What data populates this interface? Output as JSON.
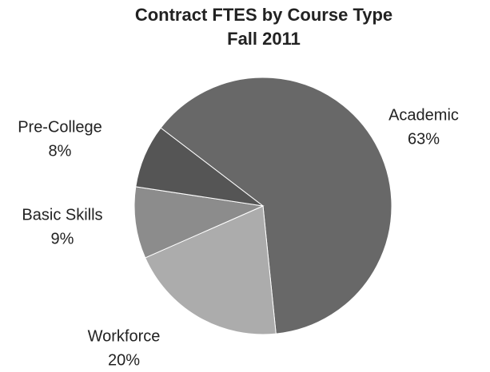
{
  "chart_data": {
    "type": "pie",
    "title": "Contract FTES by Course Type",
    "subtitle": "Fall 2011",
    "categories": [
      "Academic",
      "Workforce",
      "Basic Skills",
      "Pre-College"
    ],
    "values": [
      63,
      20,
      9,
      8
    ],
    "value_labels": [
      "63%",
      "20%",
      "9%",
      "8%"
    ],
    "colors": [
      "#686868",
      "#acacac",
      "#8c8c8c",
      "#555555"
    ]
  }
}
